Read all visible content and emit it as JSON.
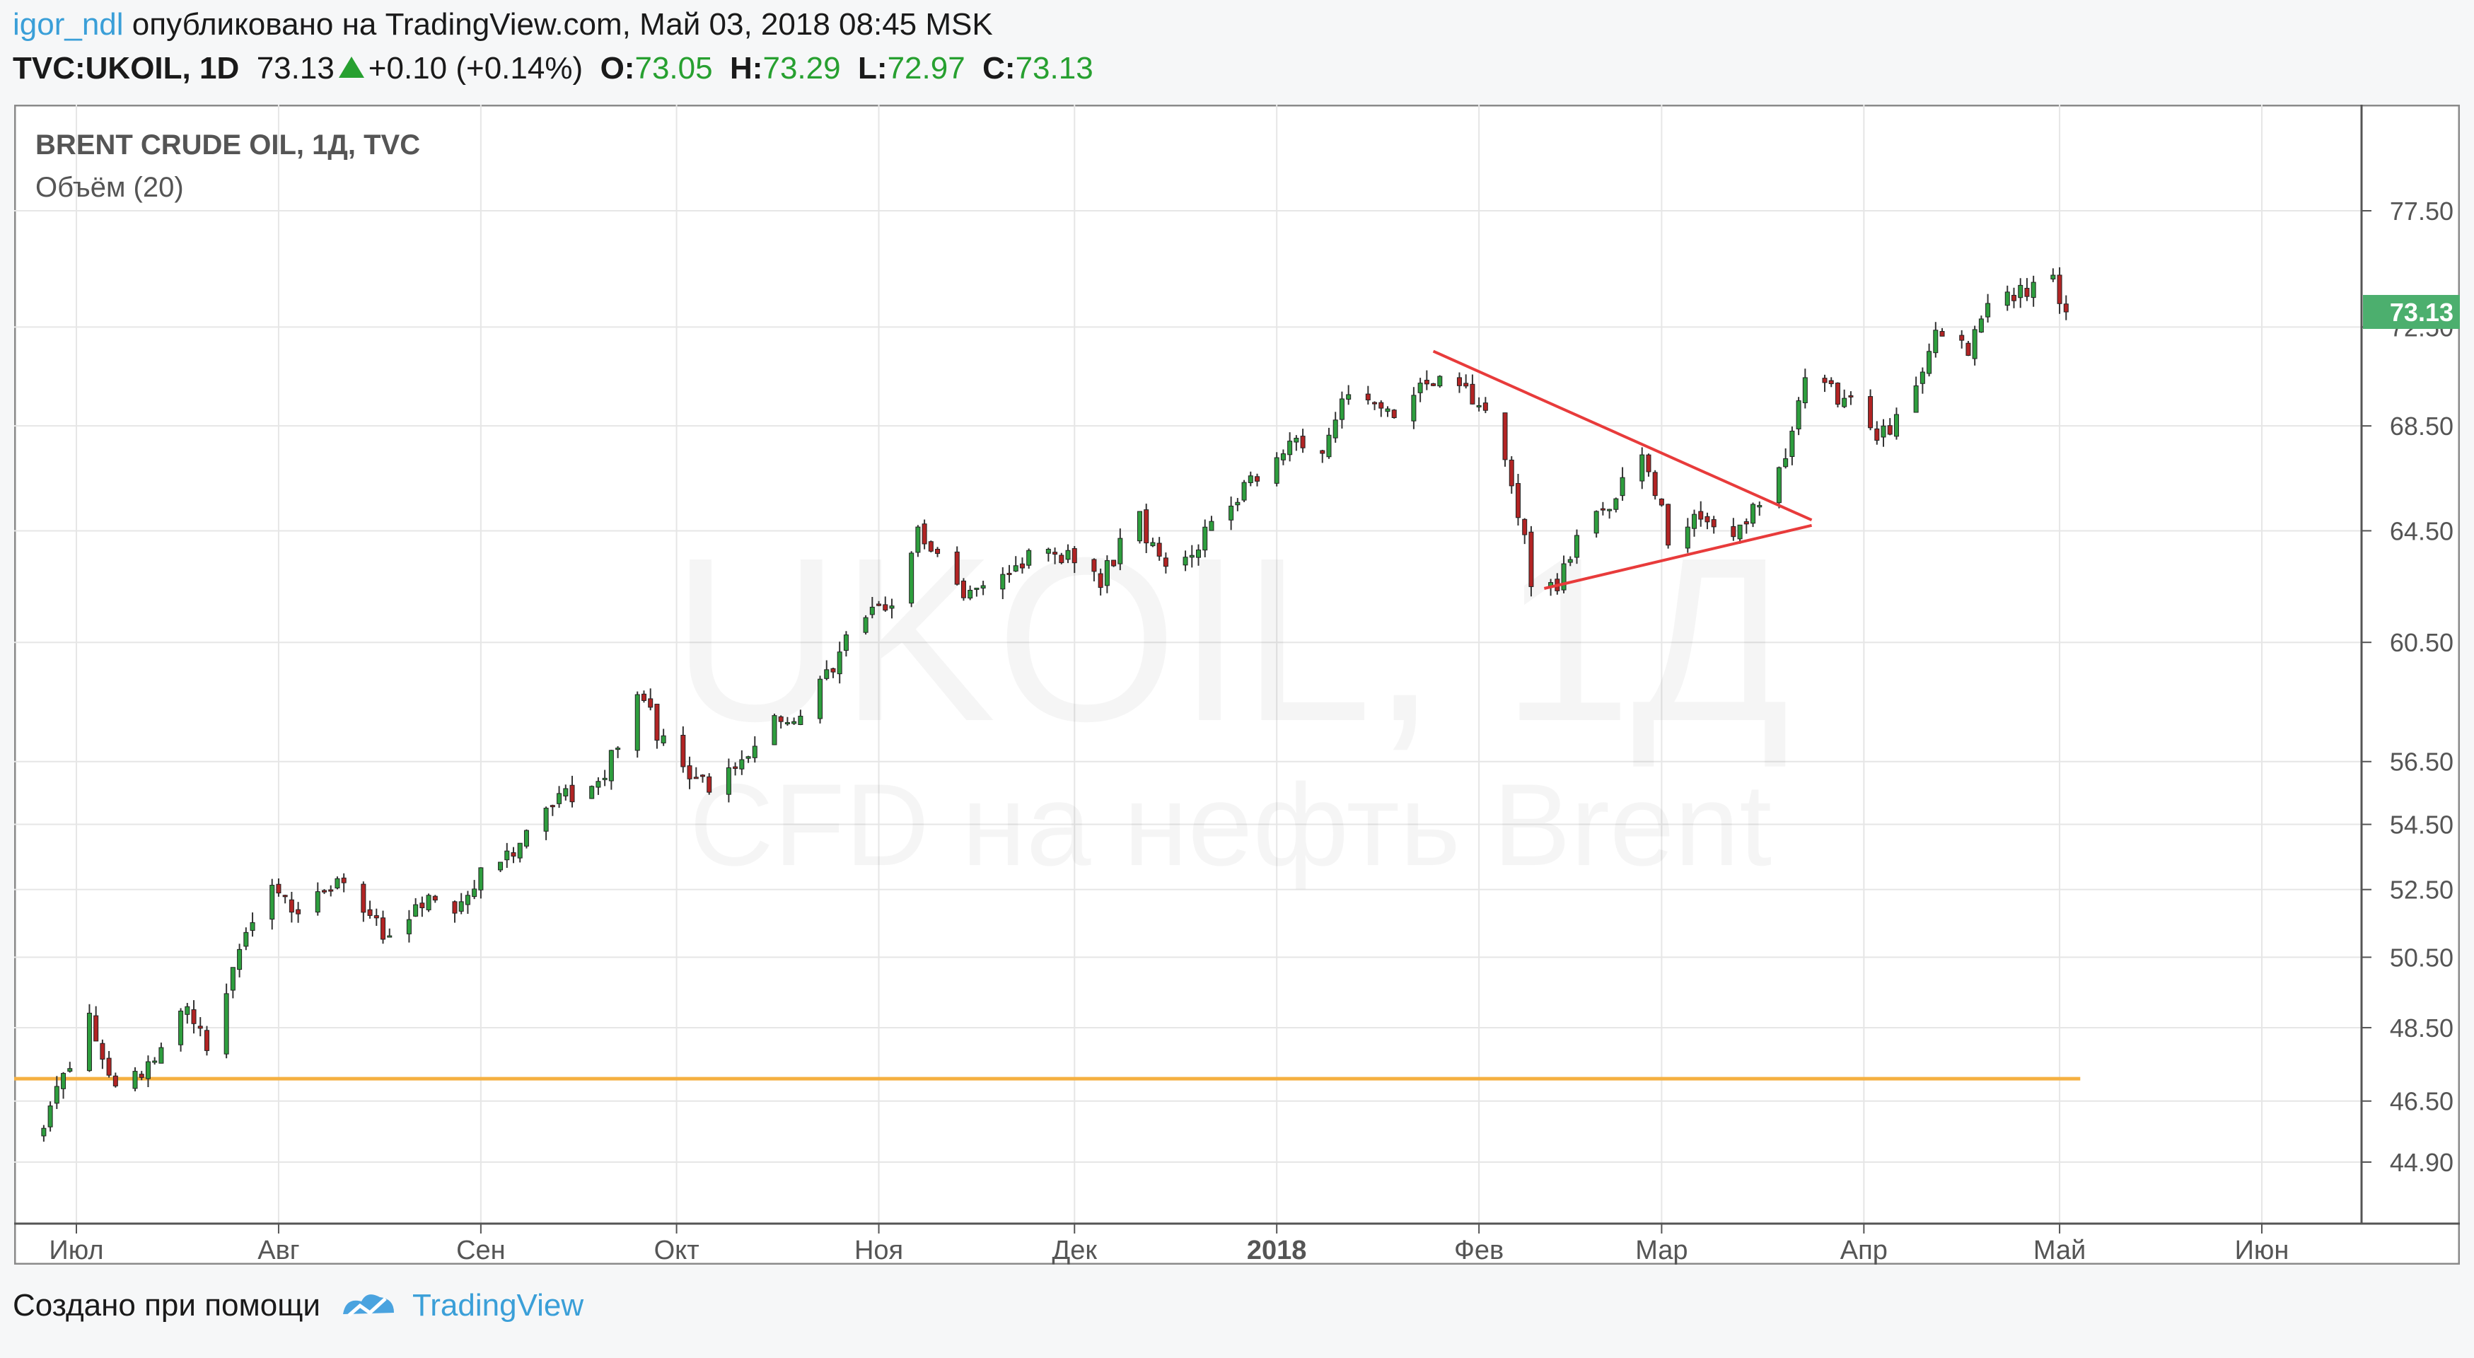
{
  "header": {
    "user": "igor_ndl",
    "published": "опубликовано на TradingView.com, Май 03, 2018 08:45 MSK",
    "symbol": "TVC:UKOIL, 1D",
    "price": "73.13",
    "change": "+0.10 (+0.14%)",
    "o_label": "O:",
    "o_value": "73.05",
    "h_label": "H:",
    "h_value": "73.29",
    "l_label": "L:",
    "l_value": "72.97",
    "c_label": "C:",
    "c_value": "73.13"
  },
  "chart_data": {
    "type": "candlestick",
    "title": "BRENT CRUDE OIL, 1Д, TVC",
    "subtitle": "Объём (20)",
    "watermark_line1": "UKOIL, 1Д",
    "watermark_line2": "CFD на нефть Brent",
    "x_ticks": [
      {
        "label": "Июл",
        "date": "2017-07-01",
        "bold": false
      },
      {
        "label": "Авг",
        "date": "2017-08-01",
        "bold": false
      },
      {
        "label": "Сен",
        "date": "2017-09-01",
        "bold": false
      },
      {
        "label": "Окт",
        "date": "2017-10-01",
        "bold": false
      },
      {
        "label": "Ноя",
        "date": "2017-11-01",
        "bold": false
      },
      {
        "label": "Дек",
        "date": "2017-12-01",
        "bold": false
      },
      {
        "label": "2018",
        "date": "2018-01-01",
        "bold": true
      },
      {
        "label": "Фев",
        "date": "2018-02-01",
        "bold": false
      },
      {
        "label": "Мар",
        "date": "2018-03-01",
        "bold": false
      },
      {
        "label": "Апр",
        "date": "2018-04-01",
        "bold": false
      },
      {
        "label": "Май",
        "date": "2018-05-01",
        "bold": false
      },
      {
        "label": "Июн",
        "date": "2018-06-01",
        "bold": false
      }
    ],
    "y_ticks": [
      "77.50",
      "72.50",
      "68.50",
      "64.50",
      "60.50",
      "56.50",
      "54.50",
      "52.50",
      "50.50",
      "48.50",
      "46.50",
      "44.90"
    ],
    "last_price_label": "73.13",
    "horizontal_line": {
      "value": 47.1,
      "color": "#f5b041"
    },
    "trend_lines": [
      {
        "from": {
          "date": "2018-01-25",
          "value": 71.5
        },
        "to": {
          "date": "2018-03-24",
          "value": 64.9
        },
        "color": "#e83b3b"
      },
      {
        "from": {
          "date": "2018-02-11",
          "value": 62.4
        },
        "to": {
          "date": "2018-03-24",
          "value": 64.7
        },
        "color": "#e83b3b"
      }
    ],
    "colors": {
      "up": "#2e9e3e",
      "down": "#b22424",
      "wick": "#333333",
      "grid": "#e6e6e6",
      "price_tag": "#4caf6e"
    },
    "path_anchors": [
      {
        "date": "2017-06-26",
        "value": 45.7
      },
      {
        "date": "2017-07-03",
        "value": 48.9
      },
      {
        "date": "2017-07-07",
        "value": 46.9
      },
      {
        "date": "2017-07-11",
        "value": 47.3
      },
      {
        "date": "2017-07-18",
        "value": 49.2
      },
      {
        "date": "2017-07-21",
        "value": 48.1
      },
      {
        "date": "2017-07-28",
        "value": 51.5
      },
      {
        "date": "2017-07-31",
        "value": 52.7
      },
      {
        "date": "2017-08-04",
        "value": 51.9
      },
      {
        "date": "2017-08-10",
        "value": 52.6
      },
      {
        "date": "2017-08-18",
        "value": 51.0
      },
      {
        "date": "2017-08-22",
        "value": 52.2
      },
      {
        "date": "2017-08-28",
        "value": 51.9
      },
      {
        "date": "2017-08-31",
        "value": 52.7
      },
      {
        "date": "2017-09-07",
        "value": 53.8
      },
      {
        "date": "2017-09-13",
        "value": 55.2
      },
      {
        "date": "2017-09-20",
        "value": 56.2
      },
      {
        "date": "2017-09-25",
        "value": 58.9
      },
      {
        "date": "2017-09-29",
        "value": 57.0
      },
      {
        "date": "2017-10-06",
        "value": 55.5
      },
      {
        "date": "2017-10-10",
        "value": 56.3
      },
      {
        "date": "2017-10-16",
        "value": 57.7
      },
      {
        "date": "2017-10-20",
        "value": 57.8
      },
      {
        "date": "2017-10-27",
        "value": 60.4
      },
      {
        "date": "2017-11-03",
        "value": 62.1
      },
      {
        "date": "2017-11-07",
        "value": 64.3
      },
      {
        "date": "2017-11-14",
        "value": 62.2
      },
      {
        "date": "2017-11-20",
        "value": 62.6
      },
      {
        "date": "2017-11-24",
        "value": 63.8
      },
      {
        "date": "2017-11-30",
        "value": 63.6
      },
      {
        "date": "2017-12-05",
        "value": 62.8
      },
      {
        "date": "2017-12-11",
        "value": 65.0
      },
      {
        "date": "2017-12-14",
        "value": 63.3
      },
      {
        "date": "2017-12-19",
        "value": 63.8
      },
      {
        "date": "2017-12-27",
        "value": 66.2
      },
      {
        "date": "2018-01-04",
        "value": 68.1
      },
      {
        "date": "2018-01-08",
        "value": 67.8
      },
      {
        "date": "2018-01-12",
        "value": 69.9
      },
      {
        "date": "2018-01-19",
        "value": 68.9
      },
      {
        "date": "2018-01-25",
        "value": 70.5
      },
      {
        "date": "2018-02-01",
        "value": 69.5
      },
      {
        "date": "2018-02-05",
        "value": 67.5
      },
      {
        "date": "2018-02-09",
        "value": 62.8
      },
      {
        "date": "2018-02-13",
        "value": 62.6
      },
      {
        "date": "2018-02-16",
        "value": 64.4
      },
      {
        "date": "2018-02-21",
        "value": 65.4
      },
      {
        "date": "2018-02-26",
        "value": 67.4
      },
      {
        "date": "2018-03-02",
        "value": 64.3
      },
      {
        "date": "2018-03-07",
        "value": 65.0
      },
      {
        "date": "2018-03-12",
        "value": 64.0
      },
      {
        "date": "2018-03-15",
        "value": 65.1
      },
      {
        "date": "2018-03-20",
        "value": 67.3
      },
      {
        "date": "2018-03-23",
        "value": 70.2
      },
      {
        "date": "2018-03-27",
        "value": 69.9
      },
      {
        "date": "2018-03-30",
        "value": 69.3
      },
      {
        "date": "2018-04-04",
        "value": 68.1
      },
      {
        "date": "2018-04-09",
        "value": 70.4
      },
      {
        "date": "2018-04-12",
        "value": 72.0
      },
      {
        "date": "2018-04-17",
        "value": 71.5
      },
      {
        "date": "2018-04-20",
        "value": 73.7
      },
      {
        "date": "2018-04-25",
        "value": 74.0
      },
      {
        "date": "2018-04-30",
        "value": 74.5
      },
      {
        "date": "2018-05-02",
        "value": 73.13
      }
    ]
  },
  "footer": {
    "created_with": "Создано при помощи",
    "brand": "TradingView"
  }
}
